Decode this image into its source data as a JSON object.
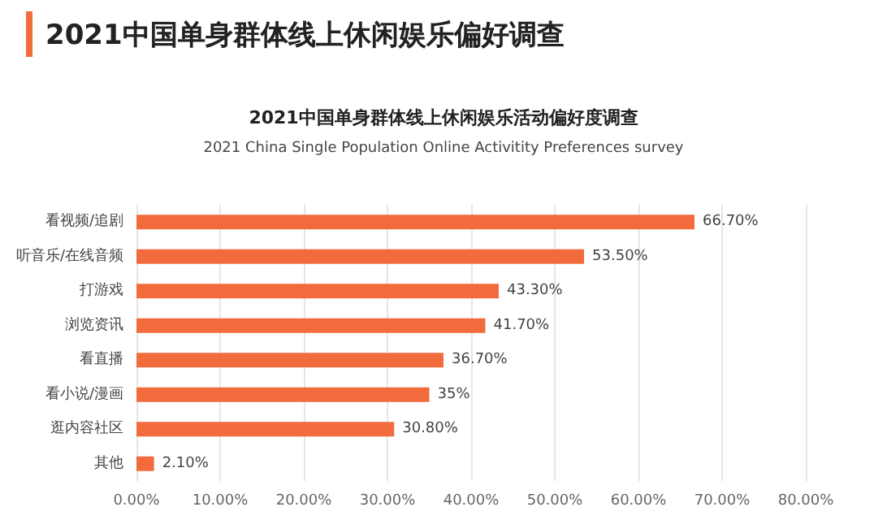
{
  "chart_data": {
    "type": "bar",
    "orientation": "horizontal",
    "title": "2021中国单身群体线上休闲娱乐偏好调查",
    "subtitle": "2021中国单身群体线上休闲娱乐活动偏好度调查",
    "annotations": [
      "2021 China Single Population Online Activitity Preferences survey"
    ],
    "categories": [
      "看视频/追剧",
      "听音乐/在线音频",
      "打游戏",
      "浏览资讯",
      "看直播",
      "看小说/漫画",
      "逛内容社区",
      "其他"
    ],
    "values": [
      66.7,
      53.5,
      43.3,
      41.7,
      36.7,
      35,
      30.8,
      2.1
    ],
    "value_labels": [
      "66.70%",
      "53.50%",
      "43.30%",
      "41.70%",
      "36.70%",
      "35%",
      "30.80%",
      "2.10%"
    ],
    "color": "#f26b3d",
    "xlim": [
      0,
      80
    ],
    "xticks": [
      {
        "value": 0,
        "label": "0.00%"
      },
      {
        "value": 10,
        "label": "10.00%"
      },
      {
        "value": 20,
        "label": "20.00%"
      },
      {
        "value": 30,
        "label": "30.00%"
      },
      {
        "value": 40,
        "label": "40.00%"
      },
      {
        "value": 50,
        "label": "50.00%"
      },
      {
        "value": 60,
        "label": "60.00%"
      },
      {
        "value": 70,
        "label": "70.00%"
      },
      {
        "value": 80,
        "label": "80.00%"
      }
    ],
    "grid": "x"
  }
}
